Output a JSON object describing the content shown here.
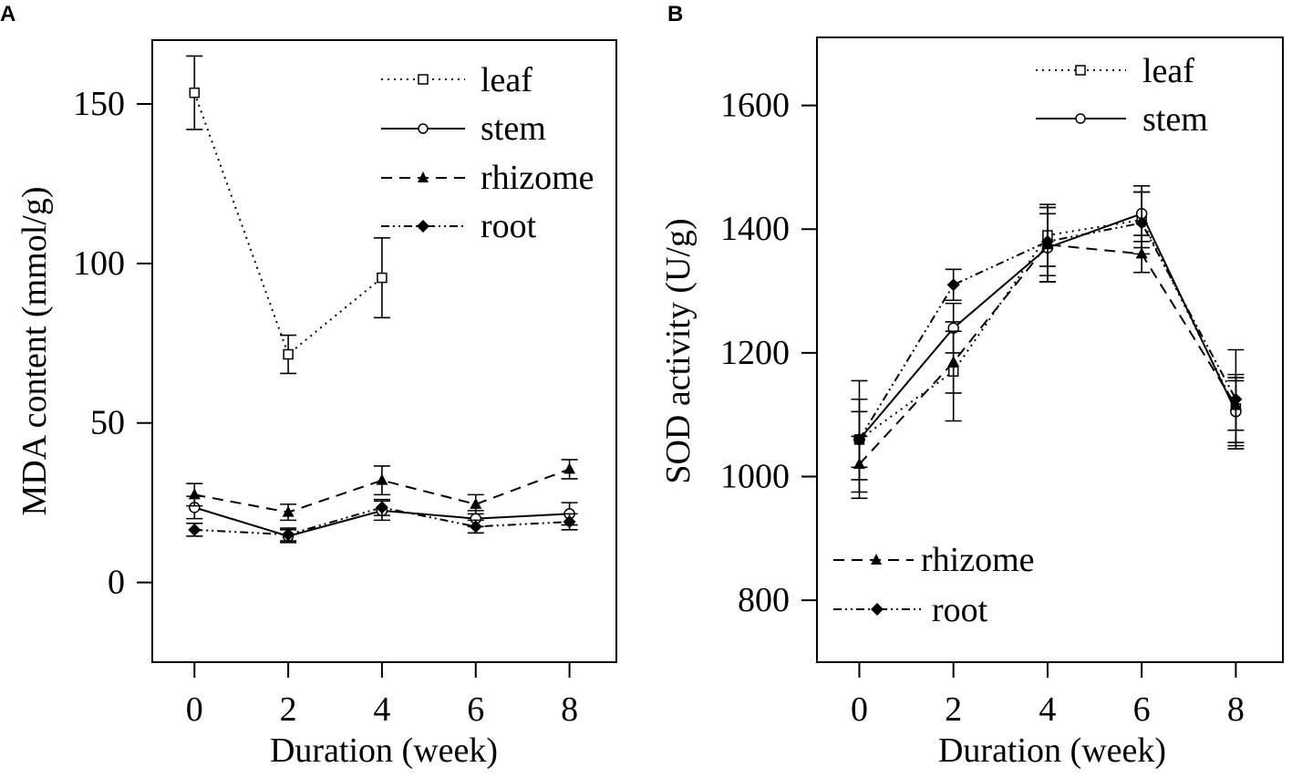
{
  "panels": [
    {
      "letter": "A",
      "chart_data": {
        "type": "line",
        "title": "",
        "xlabel": "Duration (week)",
        "ylabel": "MDA content (mmol/g)",
        "x": [
          0,
          2,
          4,
          6,
          8
        ],
        "xticks": [
          0,
          2,
          4,
          6,
          8
        ],
        "yticks": [
          0,
          50,
          100,
          150
        ],
        "xlim": [
          -0.9,
          9.0
        ],
        "ylim": [
          -25,
          170
        ],
        "grid": false,
        "legend_position": "top-right",
        "series": [
          {
            "name": "leaf",
            "style": "dotted",
            "marker": "open-square",
            "values": [
              153.5,
              71.5,
              95.5,
              null,
              null
            ],
            "errors": [
              11.5,
              6,
              12.5,
              null,
              null
            ]
          },
          {
            "name": "stem",
            "style": "solid",
            "marker": "open-circle",
            "values": [
              23.5,
              14.5,
              22.5,
              20,
              21.5
            ],
            "errors": [
              3.5,
              2,
              3,
              2.5,
              3.5
            ]
          },
          {
            "name": "rhizome",
            "style": "dashed",
            "marker": "filled-triangle",
            "values": [
              27.5,
              22,
              32,
              24.5,
              35.5
            ],
            "errors": [
              3.5,
              2.5,
              4.5,
              3,
              3
            ]
          },
          {
            "name": "root",
            "style": "dash-dot-dot",
            "marker": "filled-diamond",
            "values": [
              16.5,
              15,
              23.5,
              17.5,
              19
            ],
            "errors": [
              2,
              2,
              2.5,
              2,
              2.5
            ]
          }
        ]
      }
    },
    {
      "letter": "B",
      "chart_data": {
        "type": "line",
        "title": "",
        "xlabel": "Duration (week)",
        "ylabel": "SOD activity (U/g)",
        "x": [
          0,
          2,
          4,
          6,
          8
        ],
        "xticks": [
          0,
          2,
          4,
          6,
          8
        ],
        "yticks": [
          800,
          1000,
          1200,
          1400,
          1600
        ],
        "xlim": [
          -0.9,
          9.0
        ],
        "ylim": [
          700,
          1710
        ],
        "grid": false,
        "legend_position": "split: top-right and bottom-left",
        "series": [
          {
            "name": "leaf",
            "style": "dotted",
            "marker": "open-square",
            "values": [
              1060,
              1170,
              1390,
              1415,
              1110
            ],
            "errors": [
              45,
              80,
              50,
              45,
              55
            ]
          },
          {
            "name": "stem",
            "style": "solid",
            "marker": "open-circle",
            "values": [
              1060,
              1240,
              1370,
              1425,
              1105
            ],
            "errors": [
              65,
              40,
              55,
              45,
              55
            ]
          },
          {
            "name": "rhizome",
            "style": "dashed",
            "marker": "filled-triangle",
            "values": [
              1020,
              1185,
              1375,
              1360,
              1115
            ],
            "errors": [
              45,
              50,
              60,
              30,
              40
            ]
          },
          {
            "name": "root",
            "style": "dash-dot-dot",
            "marker": "filled-diamond",
            "values": [
              1060,
              1310,
              1380,
              1410,
              1125
            ],
            "errors": [
              95,
              25,
              55,
              50,
              80
            ]
          }
        ]
      }
    }
  ]
}
